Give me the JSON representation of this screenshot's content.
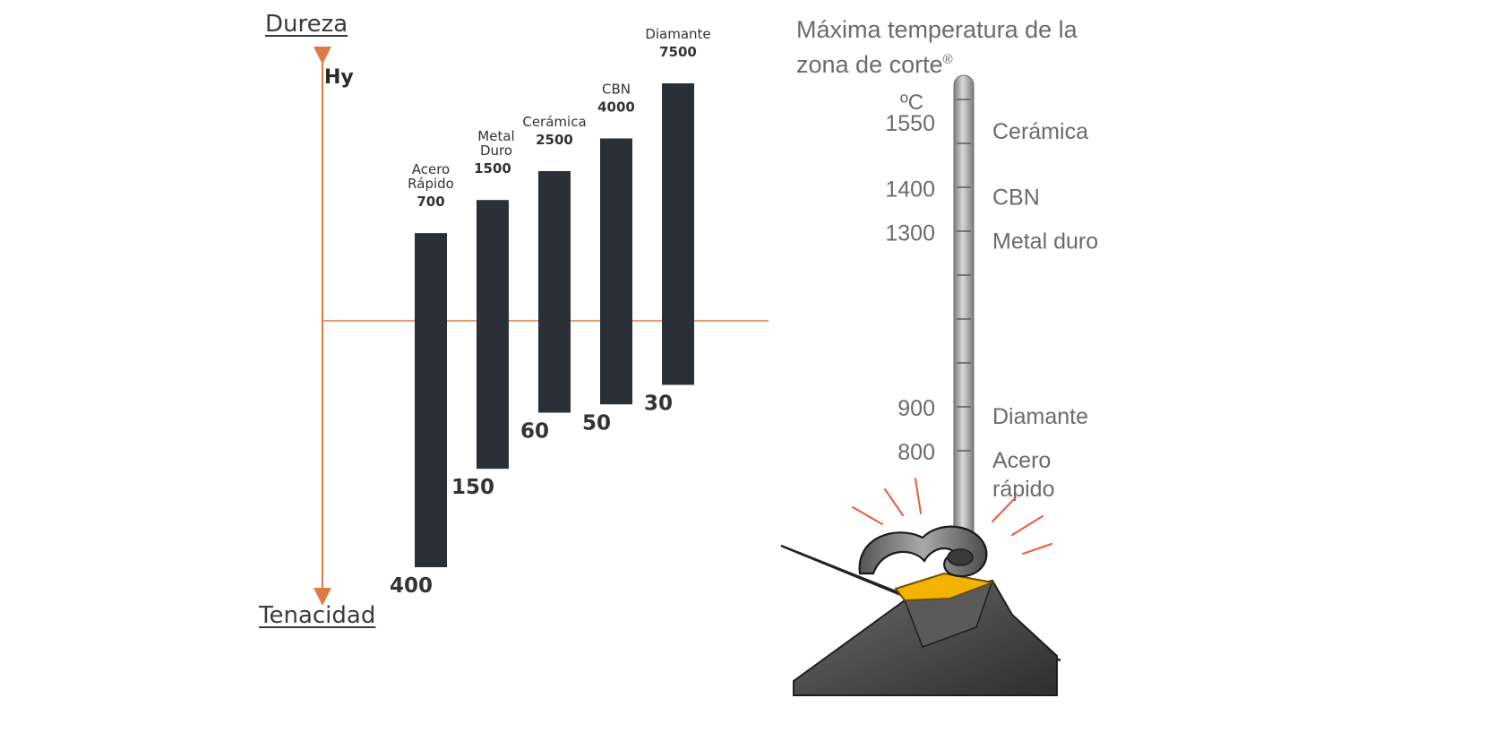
{
  "chart_data": [
    {
      "type": "bar",
      "ylabel_top": "Dureza",
      "ylabel_bottom": "Tenacidad",
      "unit_label": "Hy",
      "colors": {
        "bar": "#2b3038",
        "axis": "#e07a45",
        "text": "#333333"
      },
      "categories": [
        {
          "name_lines": [
            "Acero",
            "Rápido"
          ],
          "hardness": "700",
          "toughness": "400"
        },
        {
          "name_lines": [
            "Metal",
            "Duro"
          ],
          "hardness": "1500",
          "toughness": "150"
        },
        {
          "name_lines": [
            "Cerámica"
          ],
          "hardness": "2500",
          "toughness": "60"
        },
        {
          "name_lines": [
            "CBN"
          ],
          "hardness": "4000",
          "toughness": "50"
        },
        {
          "name_lines": [
            "Diamante"
          ],
          "hardness": "7500",
          "toughness": "30"
        }
      ]
    },
    {
      "type": "thermometer",
      "title_line1": "Máxima temperatura de la",
      "title_line2": "zona de corte",
      "title_mark": "®",
      "unit": "ºC",
      "ticks": [
        "1550",
        "1400",
        "1300",
        "900",
        "800"
      ],
      "labels": [
        {
          "lines": [
            "Cerámica"
          ],
          "value": 1550
        },
        {
          "lines": [
            "CBN"
          ],
          "value": 1400
        },
        {
          "lines": [
            "Metal duro"
          ],
          "value": 1300
        },
        {
          "lines": [
            "Diamante"
          ],
          "value": 900
        },
        {
          "lines": [
            "Acero",
            "rápido"
          ],
          "value": 800
        }
      ],
      "colors": {
        "stem": "#9a9a9a",
        "text": "#6b6b6b",
        "insert": "#f2b400",
        "tool": "#3e3e3e",
        "sparks": "#ee5a3c"
      }
    }
  ]
}
